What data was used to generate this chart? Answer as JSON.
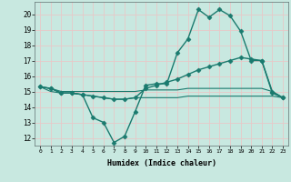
{
  "title": "",
  "xlabel": "Humidex (Indice chaleur)",
  "background_color": "#c8e8e0",
  "grid_color": "#e8c8c8",
  "line_color": "#1a7a6e",
  "xlim": [
    -0.5,
    23.5
  ],
  "ylim": [
    11.5,
    20.8
  ],
  "yticks": [
    12,
    13,
    14,
    15,
    16,
    17,
    18,
    19,
    20
  ],
  "xticks": [
    0,
    1,
    2,
    3,
    4,
    5,
    6,
    7,
    8,
    9,
    10,
    11,
    12,
    13,
    14,
    15,
    16,
    17,
    18,
    19,
    20,
    21,
    22,
    23
  ],
  "series": [
    {
      "x": [
        0,
        1,
        2,
        3,
        4,
        5,
        6,
        7,
        8,
        9,
        10,
        11,
        12,
        13,
        14,
        15,
        16,
        17,
        18,
        19,
        20,
        21,
        22,
        23
      ],
      "y": [
        15.3,
        15.2,
        14.9,
        14.9,
        14.8,
        13.3,
        13.0,
        11.7,
        12.1,
        13.7,
        15.4,
        15.5,
        15.5,
        17.5,
        18.4,
        20.3,
        19.8,
        20.3,
        19.9,
        18.9,
        17.0,
        17.0,
        14.9,
        14.6
      ],
      "marker": "D",
      "markersize": 2.5,
      "linewidth": 1.0
    },
    {
      "x": [
        0,
        1,
        2,
        3,
        4,
        5,
        6,
        7,
        8,
        9,
        10,
        11,
        12,
        13,
        14,
        15,
        16,
        17,
        18,
        19,
        20,
        21,
        22,
        23
      ],
      "y": [
        15.3,
        15.2,
        14.9,
        14.9,
        14.8,
        14.7,
        14.6,
        14.5,
        14.5,
        14.6,
        15.2,
        15.4,
        15.6,
        15.8,
        16.1,
        16.4,
        16.6,
        16.8,
        17.0,
        17.2,
        17.1,
        17.0,
        15.0,
        14.6
      ],
      "marker": "D",
      "markersize": 2.5,
      "linewidth": 1.0
    },
    {
      "x": [
        0,
        1,
        2,
        3,
        4,
        5,
        6,
        7,
        8,
        9,
        10,
        11,
        12,
        13,
        14,
        15,
        16,
        17,
        18,
        19,
        20,
        21,
        22,
        23
      ],
      "y": [
        15.3,
        15.2,
        15.0,
        15.0,
        15.0,
        15.0,
        15.0,
        15.0,
        15.0,
        15.0,
        15.1,
        15.1,
        15.1,
        15.1,
        15.2,
        15.2,
        15.2,
        15.2,
        15.2,
        15.2,
        15.2,
        15.2,
        15.0,
        14.6
      ],
      "marker": null,
      "markersize": 0,
      "linewidth": 0.8
    },
    {
      "x": [
        0,
        1,
        2,
        3,
        4,
        5,
        6,
        7,
        8,
        9,
        10,
        11,
        12,
        13,
        14,
        15,
        16,
        17,
        18,
        19,
        20,
        21,
        22,
        23
      ],
      "y": [
        15.3,
        15.0,
        14.9,
        14.9,
        14.8,
        14.7,
        14.6,
        14.5,
        14.5,
        14.6,
        14.6,
        14.6,
        14.6,
        14.6,
        14.7,
        14.7,
        14.7,
        14.7,
        14.7,
        14.7,
        14.7,
        14.7,
        14.7,
        14.6
      ],
      "marker": null,
      "markersize": 0,
      "linewidth": 0.8
    }
  ]
}
